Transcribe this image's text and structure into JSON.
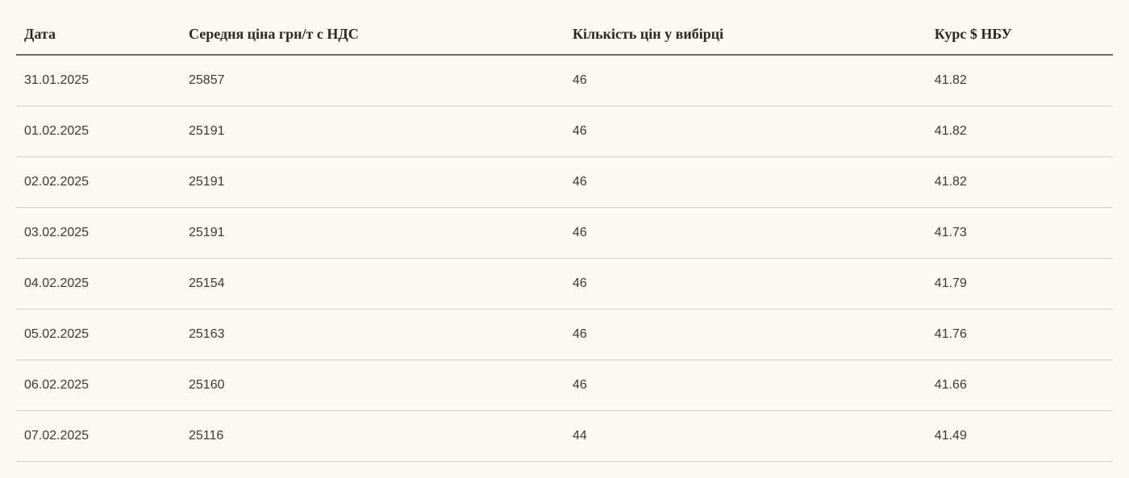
{
  "table": {
    "background_color": "#fdf9f3",
    "header_text_color": "#2a2a1f",
    "header_border_color": "#6b6b5a",
    "row_text_color": "#3a3a2f",
    "row_border_color": "#d4d0c4",
    "header_fontsize": 18,
    "cell_fontsize": 16,
    "columns": [
      {
        "key": "date",
        "label": "Дата",
        "width": "15%"
      },
      {
        "key": "price",
        "label": "Середня ціна грн/т с НДС",
        "width": "35%"
      },
      {
        "key": "count",
        "label": "Кількість цін у вибірці",
        "width": "33%"
      },
      {
        "key": "rate",
        "label": "Курс $ НБУ",
        "width": "17%"
      }
    ],
    "rows": [
      {
        "date": "31.01.2025",
        "price": "25857",
        "count": "46",
        "rate": "41.82"
      },
      {
        "date": "01.02.2025",
        "price": "25191",
        "count": "46",
        "rate": "41.82"
      },
      {
        "date": "02.02.2025",
        "price": "25191",
        "count": "46",
        "rate": "41.82"
      },
      {
        "date": "03.02.2025",
        "price": "25191",
        "count": "46",
        "rate": "41.73"
      },
      {
        "date": "04.02.2025",
        "price": "25154",
        "count": "46",
        "rate": "41.79"
      },
      {
        "date": "05.02.2025",
        "price": "25163",
        "count": "46",
        "rate": "41.76"
      },
      {
        "date": "06.02.2025",
        "price": "25160",
        "count": "46",
        "rate": "41.66"
      },
      {
        "date": "07.02.2025",
        "price": "25116",
        "count": "44",
        "rate": "41.49"
      }
    ]
  }
}
